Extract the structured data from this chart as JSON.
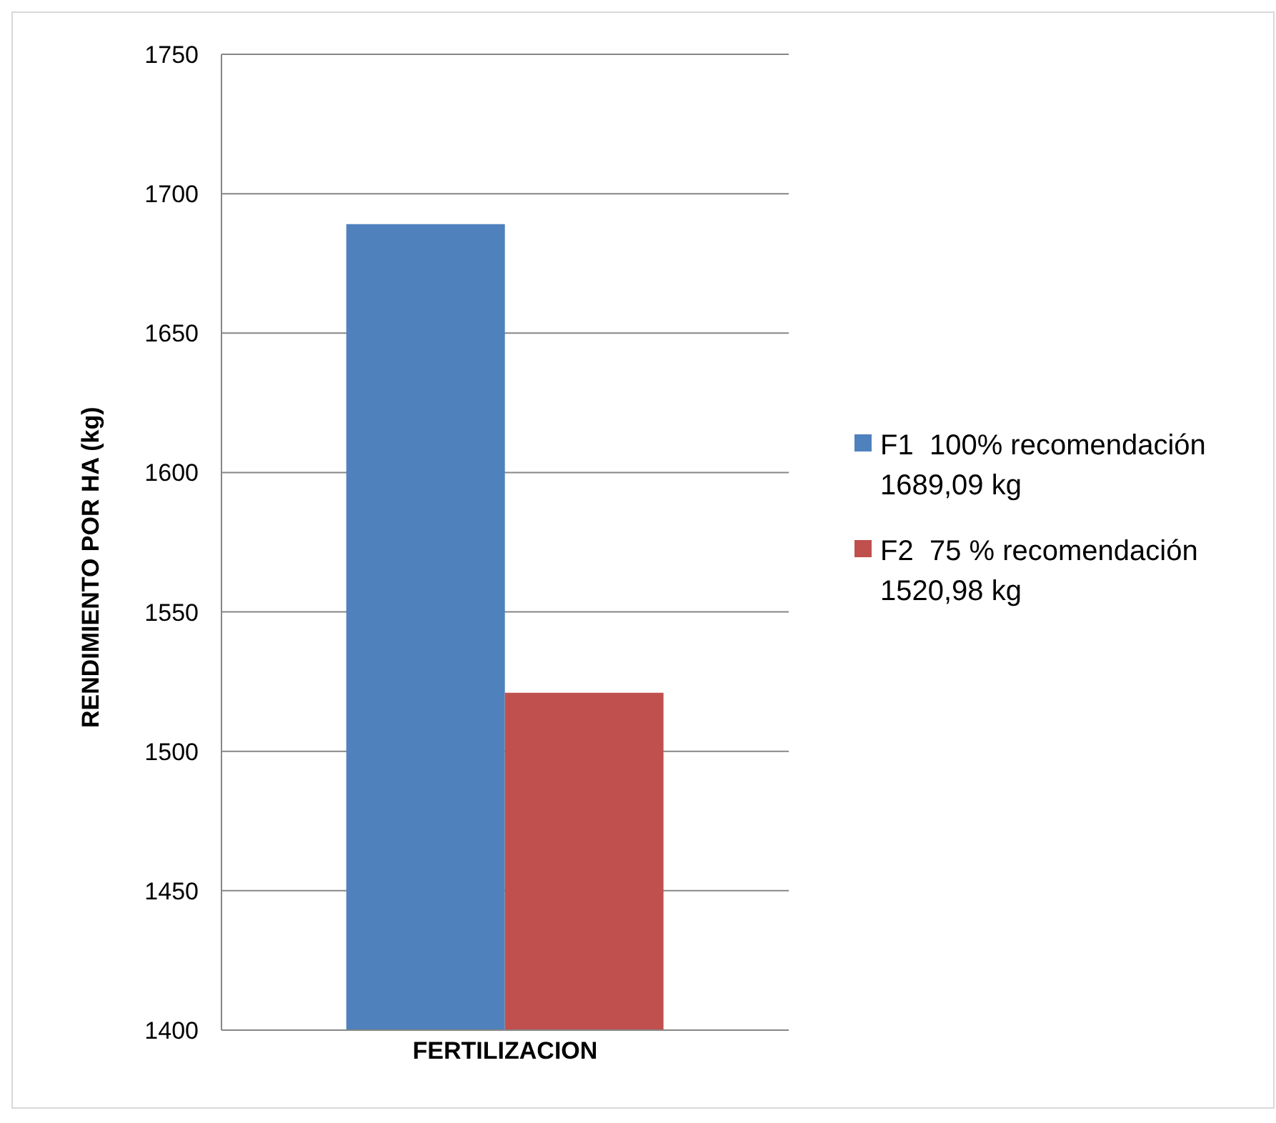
{
  "chart_data": {
    "type": "bar",
    "ylabel": "RENDIMIENTO POR HA (kg)",
    "categories": [
      "FERTILIZACION"
    ],
    "series": [
      {
        "name": "F1  100% recomendación 1689,09 kg",
        "color": "#4f81bd",
        "values": [
          1689.09
        ]
      },
      {
        "name": "F2  75 % recomendación 1520,98 kg",
        "color": "#c0504d",
        "values": [
          1520.98
        ]
      }
    ],
    "ylim": [
      1400,
      1750
    ],
    "yticks": [
      1400,
      1450,
      1500,
      1550,
      1600,
      1650,
      1700,
      1750
    ],
    "grid": "y",
    "legend": "right"
  }
}
